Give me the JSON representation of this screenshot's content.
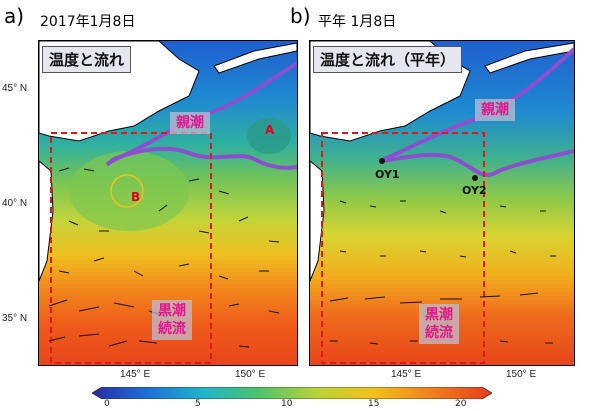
{
  "panel_a": {
    "letter": "a)",
    "date": "2017年1月8日",
    "title": "温度と流れ",
    "lat_labels": [
      "45° N",
      "40° N",
      "35° N"
    ],
    "lon_labels": [
      "145° E",
      "150° E"
    ],
    "oyashio": "親潮",
    "kuroshio_line1": "黒潮",
    "kuroshio_line2": "続流",
    "eddy_a": "A",
    "eddy_b": "B"
  },
  "panel_b": {
    "letter": "b)",
    "date": "平年  1月8日",
    "title": "温度と流れ（平年）",
    "lon_labels": [
      "145° E",
      "150° E"
    ],
    "oyashio": "親潮",
    "kuroshio_line1": "黒潮",
    "kuroshio_line2": "続流",
    "station1": "OY1",
    "station2": "OY2"
  },
  "colorbar": {
    "ticks": [
      "0",
      "5",
      "10",
      "15",
      "20"
    ],
    "colors": [
      "#2a2aa8",
      "#1f6fd8",
      "#1fb6c8",
      "#4fc36a",
      "#b8d23a",
      "#f2c21c",
      "#f0801e",
      "#e83a1c"
    ]
  },
  "colors": {
    "oyashio_front": "#8c4fd0",
    "box": "#e01818",
    "land": "#ffffff"
  }
}
